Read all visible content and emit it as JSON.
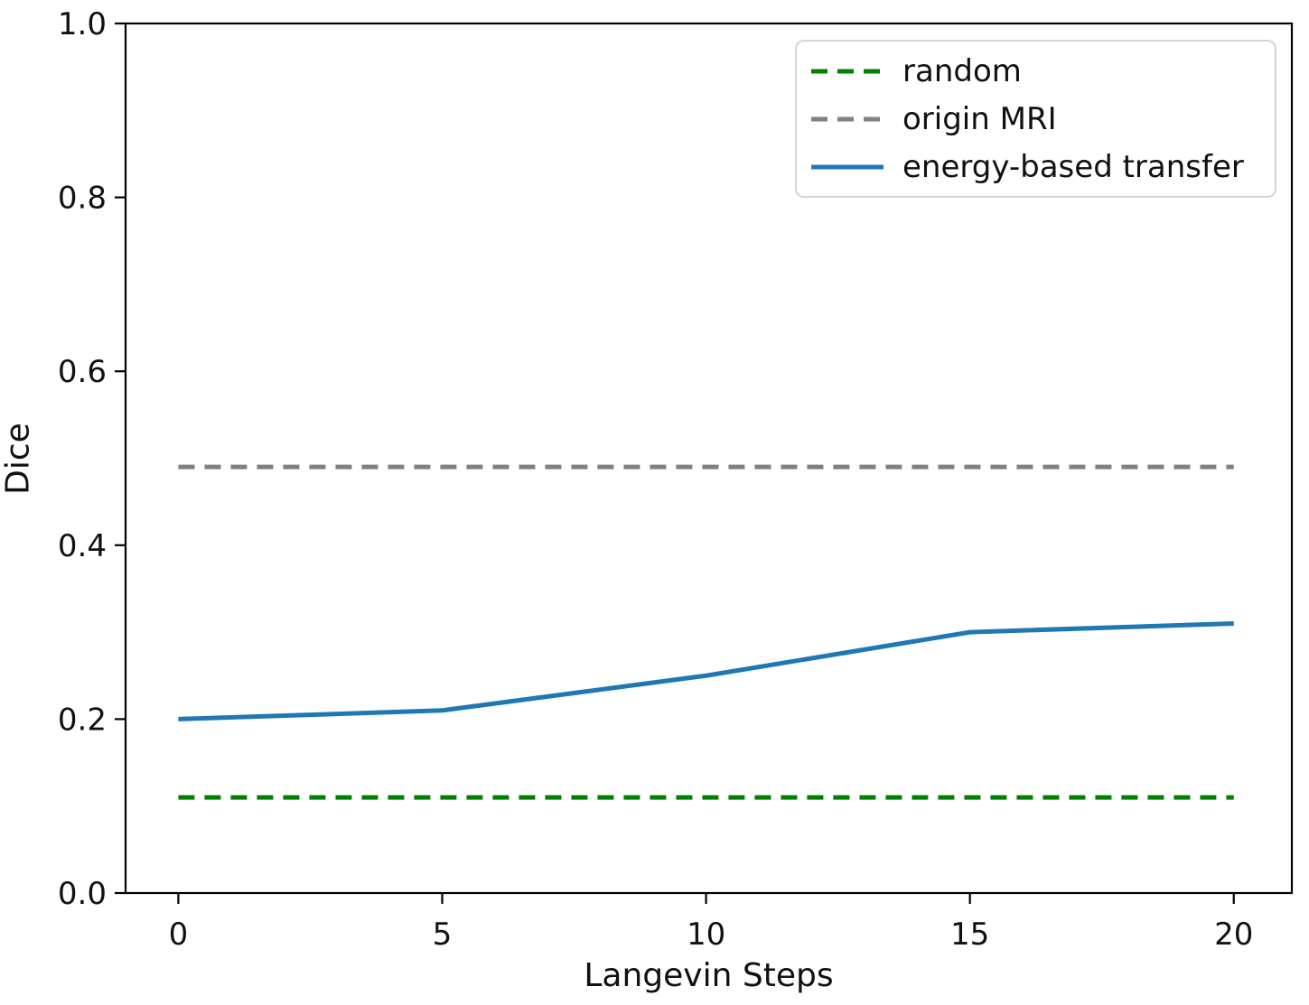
{
  "figure": {
    "background": "#ffffff",
    "spine_color": "#000000",
    "text_color": "#111111",
    "legend_border_color": "#d5d5d5"
  },
  "chart_data": {
    "type": "line",
    "title": "",
    "xlabel": "Langevin Steps",
    "ylabel": "Dice",
    "xlim": [
      -1,
      21.1
    ],
    "ylim": [
      0,
      1.0
    ],
    "xticks": {
      "values": [
        0,
        5,
        10,
        15,
        20
      ],
      "labels": [
        "0",
        "5",
        "10",
        "15",
        "20"
      ]
    },
    "yticks": {
      "values": [
        0.0,
        0.2,
        0.4,
        0.6,
        0.8,
        1.0
      ],
      "labels": [
        "0.0",
        "0.2",
        "0.4",
        "0.6",
        "0.8",
        "1.0"
      ]
    },
    "grid": false,
    "legend_position": "upper right",
    "x": [
      0,
      5,
      10,
      15,
      20
    ],
    "series": [
      {
        "name": "random",
        "color": "#008000",
        "line_style": "dashed",
        "values": [
          0.11,
          0.11,
          0.11,
          0.11,
          0.11
        ]
      },
      {
        "name": "origin MRI",
        "color": "#808080",
        "line_style": "dashed",
        "values": [
          0.49,
          0.49,
          0.49,
          0.49,
          0.49
        ]
      },
      {
        "name": "energy-based transfer",
        "color": "#1f77b4",
        "line_style": "solid",
        "values": [
          0.2,
          0.21,
          0.25,
          0.3,
          0.31
        ]
      }
    ]
  }
}
